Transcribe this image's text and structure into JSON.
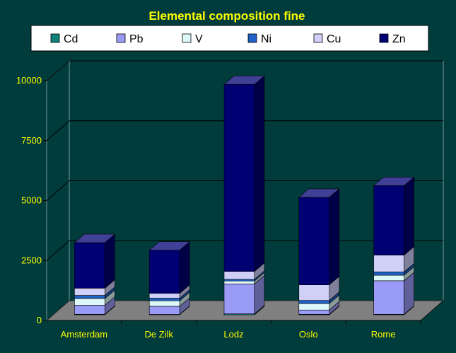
{
  "chart_data": {
    "type": "bar",
    "stacked": true,
    "three_d": true,
    "title": "Elemental composition fine",
    "xlabel": "",
    "ylabel": "",
    "ylim": [
      0,
      10000
    ],
    "yticks": [
      0,
      2500,
      5000,
      7500,
      10000
    ],
    "ytick_labels": [
      "0",
      "2500",
      "5000",
      "7500",
      "10000"
    ],
    "grid": true,
    "legend_position": "top",
    "categories": [
      "Amsterdam",
      "De Zilk",
      "Lodz",
      "Oslo",
      "Rome"
    ],
    "series": [
      {
        "name": "Cd",
        "color": "#138079",
        "values": [
          20,
          15,
          40,
          20,
          20
        ]
      },
      {
        "name": "Pb",
        "color": "#9a9af7",
        "values": [
          380,
          340,
          1250,
          180,
          1400
        ]
      },
      {
        "name": "V",
        "color": "#dcf8f8",
        "values": [
          280,
          230,
          120,
          270,
          230
        ]
      },
      {
        "name": "Ni",
        "color": "#1f63c6",
        "values": [
          130,
          110,
          70,
          130,
          140
        ]
      },
      {
        "name": "Cu",
        "color": "#cfcff8",
        "values": [
          300,
          200,
          330,
          650,
          700
        ]
      },
      {
        "name": "Zn",
        "color": "#000073",
        "values": [
          1900,
          1800,
          7800,
          3650,
          2900
        ]
      }
    ],
    "colors": {
      "background": "#003c3c",
      "floor": "#808080",
      "gridline": "#000000",
      "title_text": "#ffff00",
      "axis_text": "#ffff00",
      "legend_bg": "#ffffff"
    }
  }
}
